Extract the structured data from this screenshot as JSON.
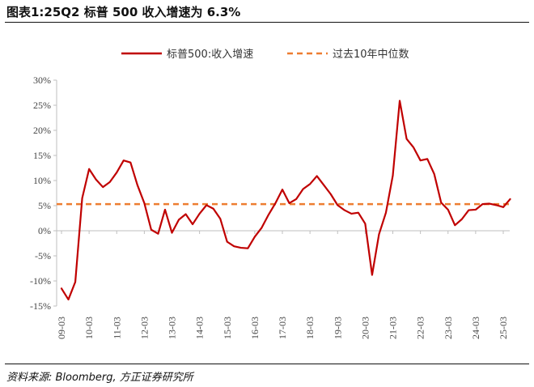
{
  "figure_title": "图表1:25Q2 标普 500 收入增速为 6.3%",
  "source": "资料来源: Bloomberg, 方正证券研究所",
  "colors": {
    "series": "#c00000",
    "median": "#ed7d31",
    "axis": "#bfbfbf"
  },
  "chart_data": {
    "type": "line",
    "title": "",
    "xlabel": "",
    "ylabel": "",
    "ylim": [
      -15,
      30
    ],
    "yticks": [
      -15,
      -10,
      -5,
      0,
      5,
      10,
      15,
      20,
      25,
      30
    ],
    "ytick_labels": [
      "-15%",
      "-10%",
      "-5%",
      "0%",
      "5%",
      "10%",
      "15%",
      "20%",
      "25%",
      "30%"
    ],
    "xtick_labels": [
      "09-03",
      "10-03",
      "11-03",
      "12-03",
      "13-03",
      "14-03",
      "15-03",
      "16-03",
      "17-03",
      "18-03",
      "19-03",
      "20-03",
      "21-03",
      "22-03",
      "23-03",
      "24-03",
      "25-03"
    ],
    "legend_position": "top",
    "grid": false,
    "series": [
      {
        "name": "标普500:收入增速",
        "style": "solid",
        "x": [
          "09-03",
          "09-06",
          "09-09",
          "09-12",
          "10-03",
          "10-06",
          "10-09",
          "10-12",
          "11-03",
          "11-06",
          "11-09",
          "11-12",
          "12-03",
          "12-06",
          "12-09",
          "12-12",
          "13-03",
          "13-06",
          "13-09",
          "13-12",
          "14-03",
          "14-06",
          "14-09",
          "14-12",
          "15-03",
          "15-06",
          "15-09",
          "15-12",
          "16-03",
          "16-06",
          "16-09",
          "16-12",
          "17-03",
          "17-06",
          "17-09",
          "17-12",
          "18-03",
          "18-06",
          "18-09",
          "18-12",
          "19-03",
          "19-06",
          "19-09",
          "19-12",
          "20-03",
          "20-06",
          "20-09",
          "20-12",
          "21-03",
          "21-06",
          "21-09",
          "21-12",
          "22-03",
          "22-06",
          "22-09",
          "22-12",
          "23-03",
          "23-06",
          "23-09",
          "23-12",
          "24-03",
          "24-06",
          "24-09",
          "24-12",
          "25-03",
          "25-06"
        ],
        "values": [
          -11.5,
          -13.7,
          -10.2,
          6.5,
          12.3,
          10.2,
          8.7,
          9.7,
          11.6,
          14.0,
          13.6,
          9.1,
          5.5,
          0.2,
          -0.6,
          4.2,
          -0.4,
          2.2,
          3.3,
          1.3,
          3.4,
          5.1,
          4.4,
          2.4,
          -2.2,
          -3.1,
          -3.4,
          -3.5,
          -1.2,
          0.6,
          3.2,
          5.5,
          8.2,
          5.5,
          6.3,
          8.3,
          9.3,
          10.9,
          9.1,
          7.3,
          5.1,
          4.1,
          3.4,
          3.6,
          1.4,
          -8.8,
          -0.7,
          3.6,
          11.0,
          25.9,
          18.3,
          16.6,
          14.0,
          14.3,
          11.3,
          5.6,
          4.2,
          1.1,
          2.3,
          4.1,
          4.2,
          5.3,
          5.4,
          5.1,
          4.7,
          6.3
        ]
      },
      {
        "name": "过去10年中位数",
        "style": "dashed",
        "constant": 5.3
      }
    ]
  }
}
